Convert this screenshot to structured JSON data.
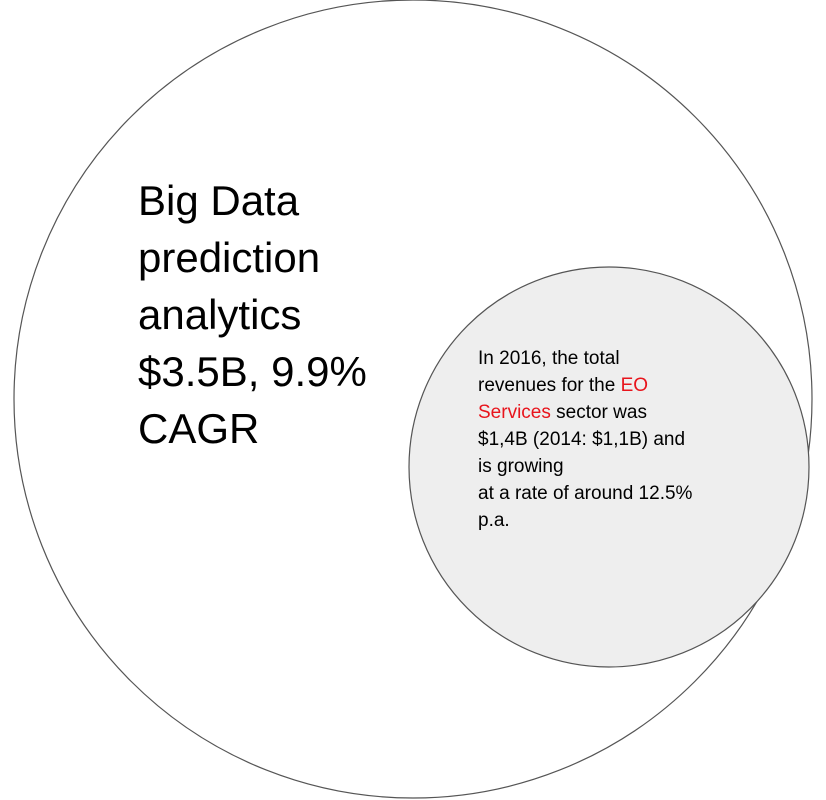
{
  "outer_circle": {
    "label_lines": [
      "Big Data",
      "prediction",
      "analytics",
      "$3.5B, 9.9%",
      "CAGR"
    ]
  },
  "inner_circle": {
    "line1": "In 2016, the total",
    "line2_prefix": "revenues for the ",
    "line2_highlight": "EO",
    "line3_highlight": "Services",
    "line3_suffix": " sector was",
    "line4": "$1,4B (2014: $1,1B) and",
    "line5": "is growing",
    "line6": "at a rate of around 12.5%",
    "line7": "p.a."
  },
  "colors": {
    "outer_fill": "#ffffff",
    "outer_stroke": "#555555",
    "inner_fill": "#eeeeee",
    "inner_stroke": "#555555",
    "highlight": "#e8141c",
    "text": "#000000"
  }
}
